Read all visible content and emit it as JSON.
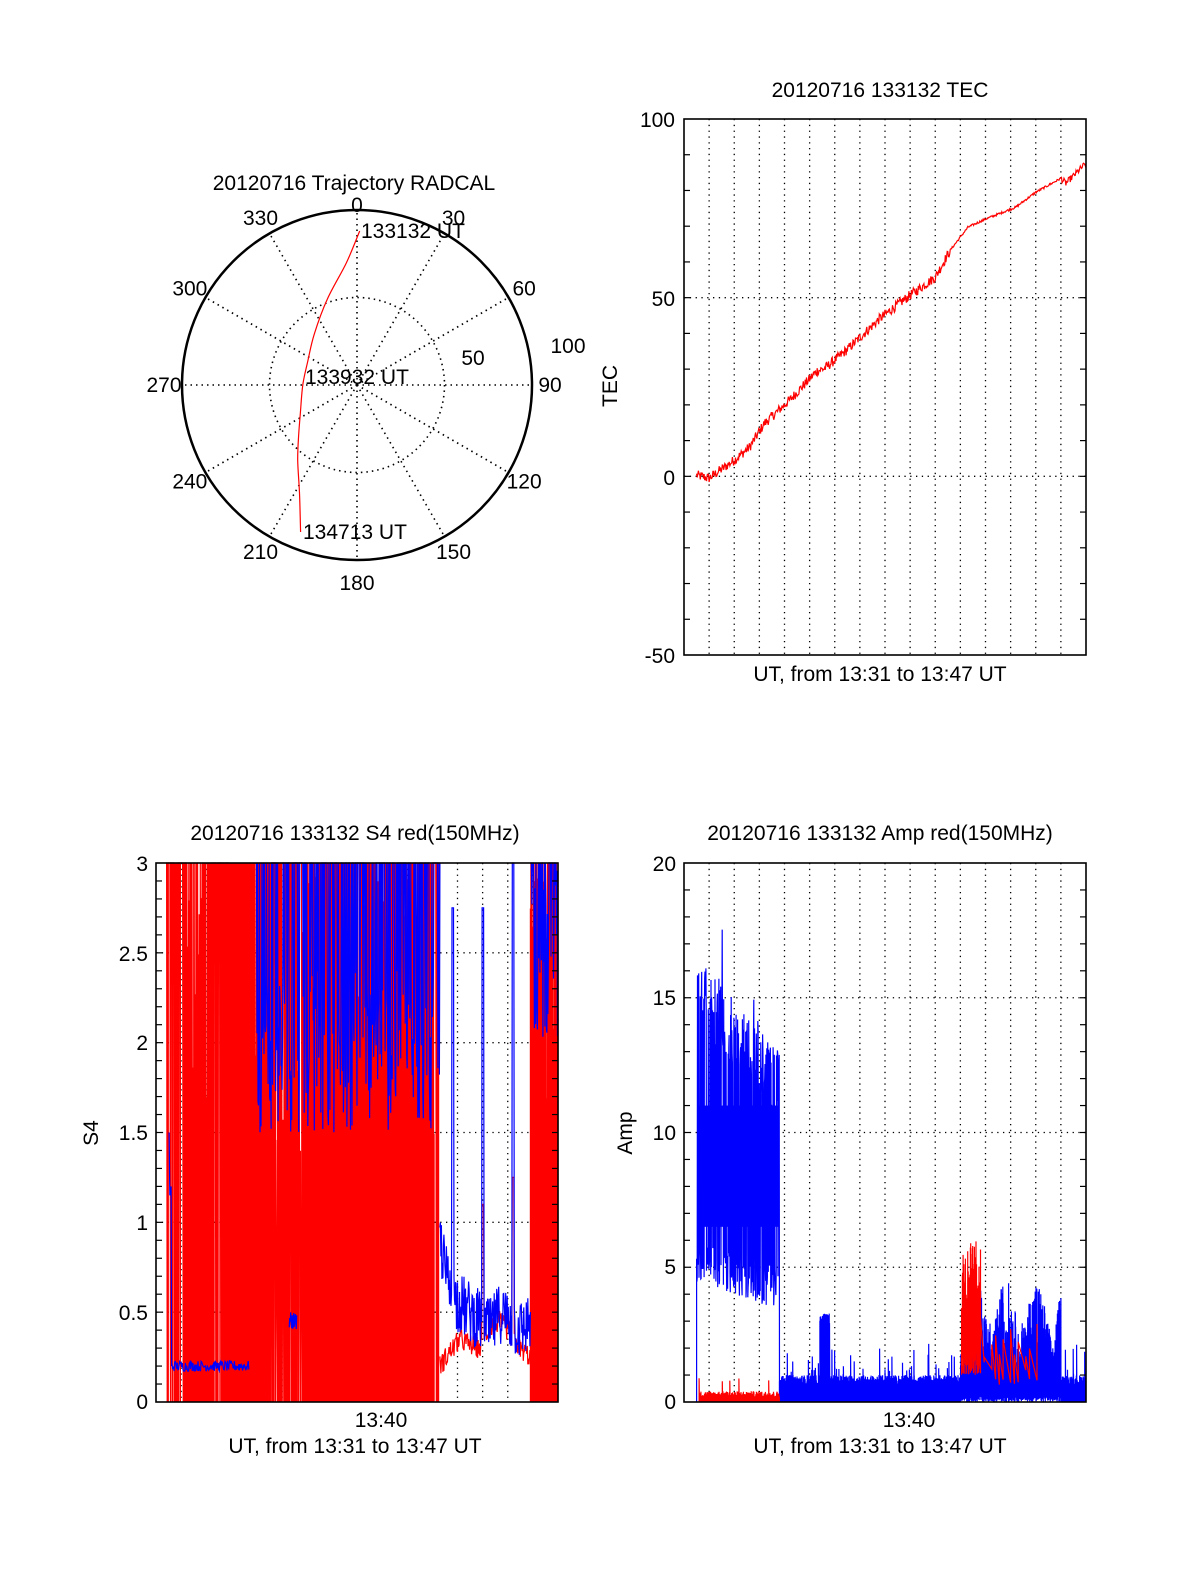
{
  "colors": {
    "red": "#ff0000",
    "blue": "#0000ff",
    "axis": "#000000",
    "background": "#ffffff"
  },
  "chart_data": [
    {
      "id": "trajectory",
      "type": "polar-line",
      "title": "20120716 Trajectory RADCAL",
      "angular_ticks": [
        "0",
        "30",
        "60",
        "90",
        "120",
        "150",
        "180",
        "210",
        "240",
        "270",
        "300",
        "330"
      ],
      "radial_ticks": [
        "50",
        "100"
      ],
      "radial_range": [
        0,
        100
      ],
      "annotations": [
        "133132 UT",
        "133932 UT",
        "134713 UT"
      ],
      "series": [
        {
          "name": "trajectory",
          "color": "red",
          "points_azimuth_deg_radius": [
            [
              1,
              88
            ],
            [
              355,
              70
            ],
            [
              341,
              52
            ],
            [
              320,
              38
            ],
            [
              294,
              31
            ],
            [
              270,
              31
            ],
            [
              244,
              36
            ],
            [
              228,
              45
            ],
            [
              218,
              55
            ],
            [
              208,
              70
            ],
            [
              201,
              90
            ]
          ]
        }
      ]
    },
    {
      "id": "tec",
      "type": "line",
      "title": "20120716 133132 TEC",
      "xlabel": "UT, from 13:31 to 13:47 UT",
      "ylabel": "TEC",
      "xlim_minutes": [
        0,
        16
      ],
      "ylim": [
        -50,
        100
      ],
      "yticks": [
        "-50",
        "0",
        "50",
        "100"
      ],
      "grid": true,
      "series": [
        {
          "name": "TEC",
          "color": "red",
          "x_minutes": [
            0.5,
            1.0,
            2.0,
            2.6,
            3.2,
            4.2,
            5.3,
            5.6,
            6.5,
            7.8,
            9.0,
            10.0,
            10.6,
            11.3,
            12.0,
            13.2,
            14.0,
            15.0,
            15.2,
            15.6,
            16.0
          ],
          "values": [
            0.3,
            -0.5,
            4.5,
            8.1,
            14.8,
            21.3,
            29.5,
            30.2,
            35.5,
            44.2,
            50.7,
            55.7,
            63.3,
            69.7,
            72.0,
            75.3,
            79.5,
            83.4,
            82.0,
            84.8,
            87.6
          ]
        }
      ]
    },
    {
      "id": "s4",
      "type": "line",
      "title": "20120716 133132 S4 red(150MHz)",
      "xlabel": "UT, from 13:31 to 13:47 UT",
      "ylabel": "S4",
      "xlim_minutes": [
        0,
        16
      ],
      "xticks": [
        {
          "minute": 9,
          "label": "13:40"
        }
      ],
      "ylim": [
        0,
        3
      ],
      "yticks": [
        "0",
        "0.5",
        "1",
        "1.5",
        "2",
        "2.5",
        "3"
      ],
      "grid": true,
      "series": [
        {
          "name": "red",
          "color": "red",
          "segments": [
            {
              "from_minute": 0.4,
              "to_minute": 11.3,
              "behavior": "saturated spikes 0-3"
            },
            {
              "from_minute": 11.3,
              "to_minute": 14.9,
              "base_values": [
                0.2,
                0.28,
                0.35,
                0.32,
                0.3,
                0.42,
                0.45,
                0.38,
                0.3,
                0.25
              ],
              "peak": 1.25
            },
            {
              "from_minute": 14.9,
              "to_minute": 16.0,
              "behavior": "saturated spikes 0-3"
            }
          ]
        },
        {
          "name": "blue",
          "color": "blue",
          "segments": [
            {
              "from_minute": 0.5,
              "to_minute": 0.6,
              "values": [
                1.5,
                1.2
              ]
            },
            {
              "from_minute": 0.6,
              "to_minute": 3.7,
              "mean": 0.2
            },
            {
              "from_minute": 5.3,
              "to_minute": 5.6,
              "mean": 0.45
            },
            {
              "from_minute": 4.0,
              "to_minute": 11.3,
              "behavior": "dense 1.5-3"
            },
            {
              "from_minute": 11.3,
              "to_minute": 14.9,
              "base_values": [
                0.9,
                0.6,
                0.55,
                0.5,
                0.45,
                0.4,
                0.5,
                0.45,
                0.4,
                0.45
              ],
              "peaks": [
                2.75,
                2.75,
                3.0
              ]
            },
            {
              "from_minute": 14.9,
              "to_minute": 16.0,
              "behavior": "dense 2-3"
            }
          ]
        }
      ]
    },
    {
      "id": "amp",
      "type": "line",
      "title": "20120716 133132 Amp red(150MHz)",
      "xlabel": "UT, from 13:31 to 13:47 UT",
      "ylabel": "Amp",
      "xlim_minutes": [
        0,
        16
      ],
      "xticks": [
        {
          "minute": 9,
          "label": "13:40"
        }
      ],
      "ylim": [
        0,
        20
      ],
      "yticks": [
        "0",
        "5",
        "10",
        "15",
        "20"
      ],
      "grid": true,
      "series": [
        {
          "name": "blue",
          "color": "blue",
          "segments": [
            {
              "from_minute": 0.5,
              "to_minute": 3.8,
              "min_range": [
                4,
                6.5
              ],
              "max_range": [
                13,
                18.6
              ]
            },
            {
              "from_minute": 3.8,
              "to_minute": 11.0,
              "level": 0.7,
              "bump": {
                "from_minute": 5.4,
                "to_minute": 5.8,
                "value": 3.2
              }
            },
            {
              "from_minute": 11.0,
              "to_minute": 15.0,
              "peak": 5.0
            },
            {
              "from_minute": 15.0,
              "to_minute": 16.0,
              "level": 0.7
            }
          ]
        },
        {
          "name": "red",
          "color": "red",
          "segments": [
            {
              "from_minute": 0.6,
              "to_minute": 3.8,
              "level": 0.25
            },
            {
              "from_minute": 11.0,
              "to_minute": 11.8,
              "peak": 6.0
            },
            {
              "from_minute": 11.8,
              "to_minute": 14.5,
              "peak": 3.2
            }
          ]
        }
      ]
    }
  ],
  "labels": {
    "time_tick": "13:40",
    "ut_axis": "UT, from 13:31 to 13:47 UT"
  }
}
